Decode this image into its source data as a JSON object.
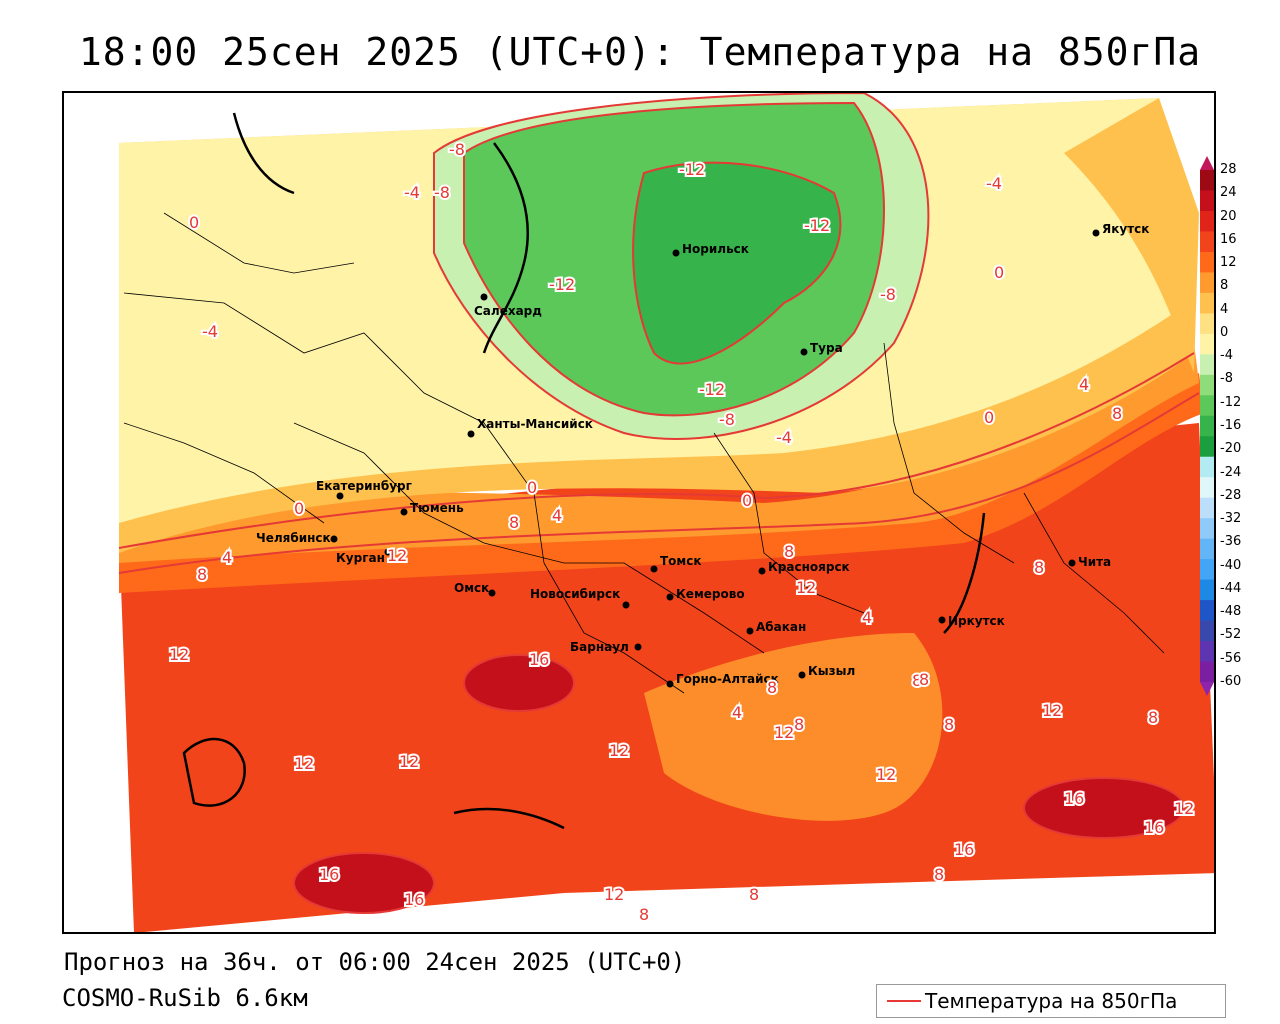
{
  "title": "18:00 25сен 2025 (UTC+0): Температура на 850гПа",
  "forecast_line": "Прогноз на 36ч. от 06:00 24сен 2025 (UTC+0)",
  "model_line": "COSMO-RuSib 6.6км",
  "legend_label": "Температура на 850гПа",
  "colors": {
    "isotherm": "#e53935",
    "bands": [
      "#7a1fa2",
      "#5e35b1",
      "#3949ab",
      "#1e56c8",
      "#1e88e5",
      "#42a5f5",
      "#64b5f6",
      "#90caf9",
      "#bbdefb",
      "#e0f7fa",
      "#b2ebf2",
      "#1b9e3e",
      "#36b34a",
      "#5cc85a",
      "#8fdc7a",
      "#c8f0b0",
      "#fff3a8",
      "#ffe082",
      "#ffc14d",
      "#ff9a2e",
      "#ff6a1a",
      "#f2441a",
      "#e0241a",
      "#c3101a",
      "#9e0a14"
    ]
  },
  "scale_labels": [
    "28",
    "24",
    "20",
    "16",
    "12",
    "8",
    "4",
    "0",
    "-4",
    "-8",
    "-12",
    "-16",
    "-20",
    "-24",
    "-28",
    "-32",
    "-36",
    "-40",
    "-44",
    "-48",
    "-52",
    "-56",
    "-60"
  ],
  "cities": [
    {
      "name": "Норильск"
    },
    {
      "name": "Якутск"
    },
    {
      "name": "Салехард"
    },
    {
      "name": "Тура"
    },
    {
      "name": "Ханты-Мансийск"
    },
    {
      "name": "Екатеринбург"
    },
    {
      "name": "Тюмень"
    },
    {
      "name": "Челябинск"
    },
    {
      "name": "Курган"
    },
    {
      "name": "Омск"
    },
    {
      "name": "Томск"
    },
    {
      "name": "Красноярск"
    },
    {
      "name": "Новосибирск"
    },
    {
      "name": "Кемерово"
    },
    {
      "name": "Абакан"
    },
    {
      "name": "Барнаул"
    },
    {
      "name": "Иркутск"
    },
    {
      "name": "Чита"
    },
    {
      "name": "Горно-Алтайск"
    },
    {
      "name": "Кызыл"
    }
  ],
  "isotherm_labels": [
    "-8",
    "-4",
    "-8",
    "0",
    "-12",
    "-12",
    "-12",
    "-8",
    "-4",
    "0",
    "-4",
    "-12",
    "-8",
    "-4",
    "0",
    "4",
    "8",
    "0",
    "0",
    "0",
    "8",
    "4",
    "12",
    "4",
    "8",
    "8",
    "12",
    "8",
    "4",
    "8",
    "12",
    "16",
    "4",
    "8",
    "12",
    "8",
    "8",
    "12",
    "12",
    "12",
    "12",
    "12",
    "8",
    "8",
    "16",
    "12",
    "16",
    "16",
    "16",
    "12",
    "16",
    "8",
    "8",
    "8"
  ]
}
